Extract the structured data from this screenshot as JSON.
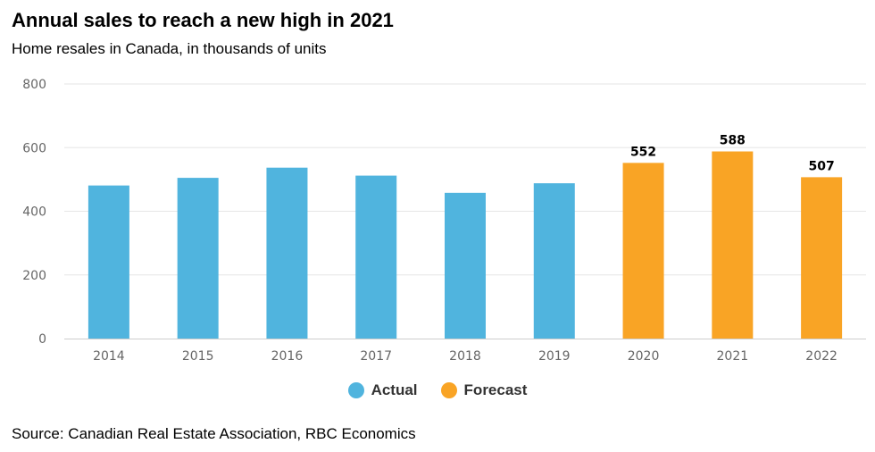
{
  "title": "Annual sales to reach a new high in 2021",
  "subtitle": "Home resales in Canada, in thousands of units",
  "source": "Source: Canadian Real Estate Association, RBC Economics",
  "colors": {
    "actual": "#50b4de",
    "forecast": "#f9a425",
    "grid": "#e6e6e6",
    "axis": "#cccccc"
  },
  "legend": [
    {
      "label": "Actual",
      "color": "#50b4de"
    },
    {
      "label": "Forecast",
      "color": "#f9a425"
    }
  ],
  "chart_data": {
    "type": "bar",
    "title": "Annual sales to reach a new high in 2021",
    "subtitle": "Home resales in Canada, in thousands of units",
    "xlabel": "",
    "ylabel": "",
    "categories": [
      "2014",
      "2015",
      "2016",
      "2017",
      "2018",
      "2019",
      "2020",
      "2021",
      "2022"
    ],
    "values": [
      481,
      505,
      537,
      512,
      458,
      488,
      552,
      588,
      507
    ],
    "series_type": [
      "Actual",
      "Actual",
      "Actual",
      "Actual",
      "Actual",
      "Actual",
      "Forecast",
      "Forecast",
      "Forecast"
    ],
    "data_labels": [
      null,
      null,
      null,
      null,
      null,
      null,
      "552",
      "588",
      "507"
    ],
    "ylim": [
      0,
      800
    ],
    "yticks": [
      0,
      200,
      400,
      600,
      800
    ],
    "grid": true,
    "legend_position": "bottom-center"
  }
}
